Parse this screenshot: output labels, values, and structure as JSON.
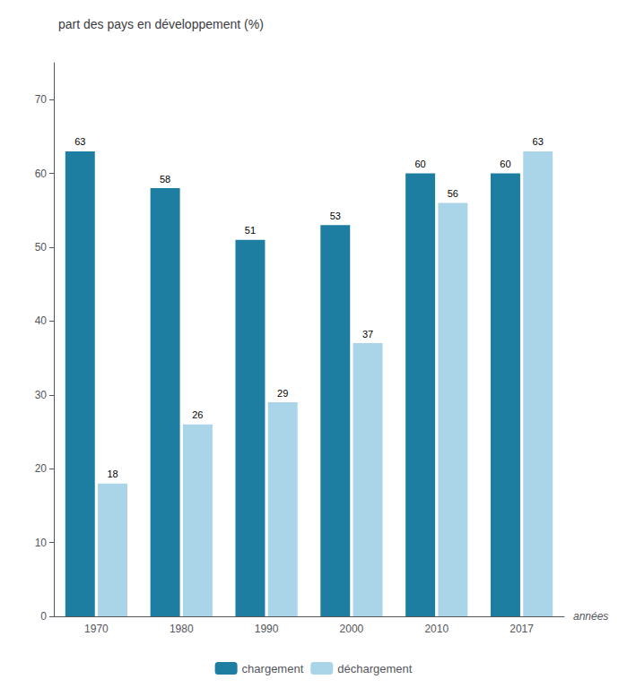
{
  "chart_data": {
    "type": "bar",
    "title": "part des pays en développement (%)",
    "xlabel": "années",
    "categories": [
      "1970",
      "1980",
      "1990",
      "2000",
      "2010",
      "2017"
    ],
    "series": [
      {
        "name": "chargement",
        "color": "#1e7ea1",
        "values": [
          63,
          58,
          51,
          53,
          60,
          60
        ]
      },
      {
        "name": "déchargement",
        "color": "#aad4e8",
        "values": [
          18,
          26,
          29,
          37,
          56,
          63
        ]
      }
    ],
    "ylim": [
      0,
      75
    ],
    "yticks": [
      0,
      10,
      20,
      30,
      40,
      50,
      60,
      70
    ],
    "grid": false,
    "legend": "bottom",
    "data_labels": true
  }
}
